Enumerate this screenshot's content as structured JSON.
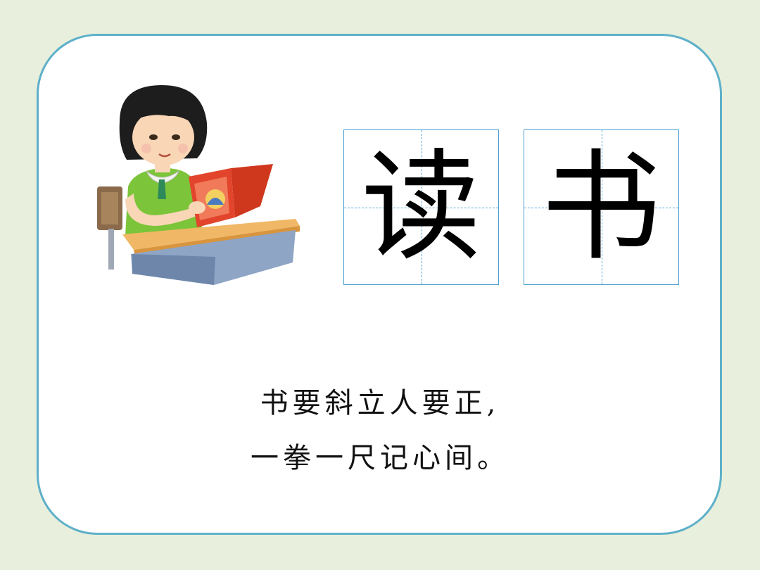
{
  "characters": [
    {
      "char": "读"
    },
    {
      "char": "书"
    }
  ],
  "poem": {
    "line1": "书要斜立人要正,",
    "line2": "一拳一尺记心间。"
  },
  "illustration": {
    "icon": "girl-reading-book-at-desk-icon",
    "colors": {
      "dress": "#7cc43a",
      "book": "#e2442c",
      "desk_top": "#f0b866",
      "desk_body": "#8ea5c6",
      "hair": "#1d1d1d",
      "chair": "#8a6a4a"
    }
  },
  "colors": {
    "background": "#e8efdc",
    "card_border": "#5fb0c9",
    "grid_line": "#5aa8d6"
  }
}
